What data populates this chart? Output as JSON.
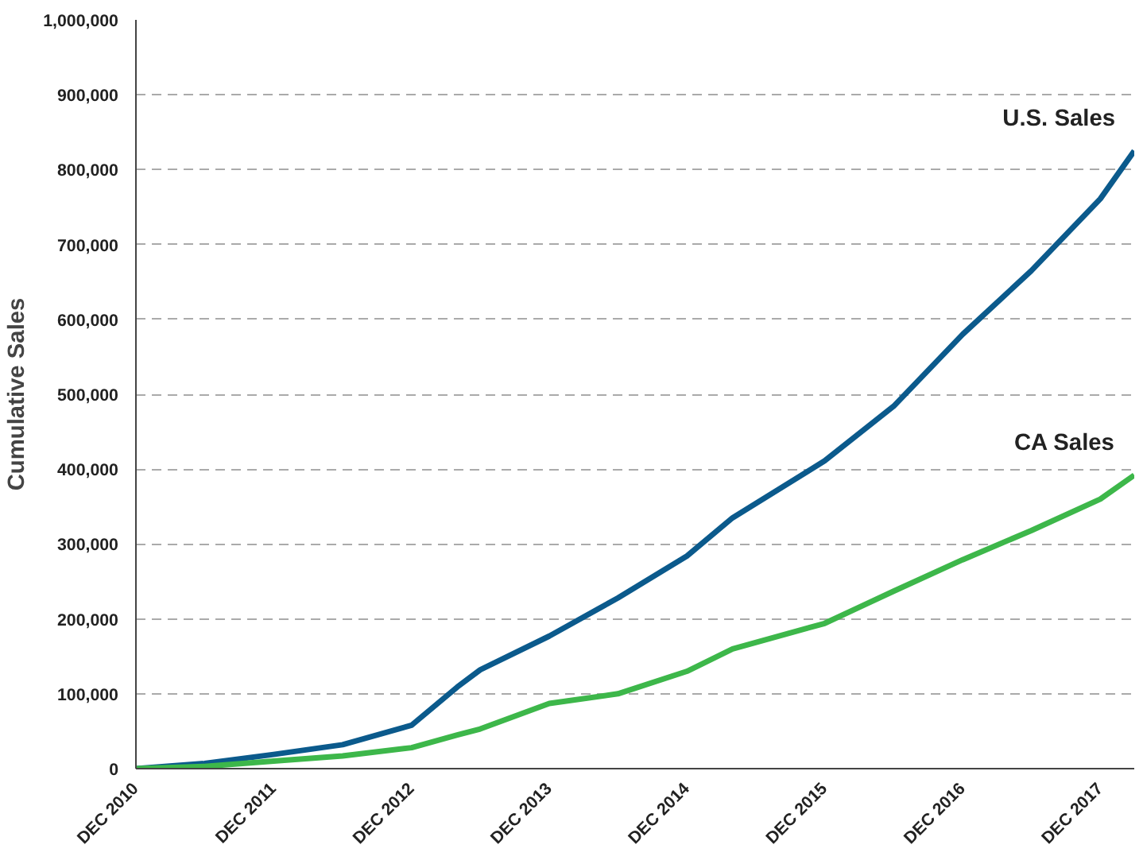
{
  "chart_data": {
    "type": "line",
    "ylabel": "Cumulative Sales",
    "x": [
      "2010-12",
      "2011-06",
      "2011-12",
      "2012-06",
      "2012-12",
      "2013-04",
      "2013-06",
      "2013-12",
      "2014-06",
      "2014-12",
      "2015-04",
      "2015-12",
      "2016-06",
      "2016-12",
      "2017-06",
      "2017-12",
      "2018-03"
    ],
    "series": [
      {
        "name": "U.S. Sales",
        "color": "#0b5a8c",
        "values": [
          0,
          7000,
          19000,
          32000,
          58000,
          109000,
          132000,
          177000,
          228000,
          284000,
          335000,
          411000,
          484000,
          580000,
          665000,
          761000,
          825000
        ]
      },
      {
        "name": "CA Sales",
        "color": "#3db74a",
        "values": [
          0,
          3000,
          10000,
          17000,
          28000,
          45000,
          53000,
          87000,
          100000,
          130000,
          160000,
          194000,
          237000,
          279000,
          318000,
          360000,
          392000
        ]
      }
    ],
    "xlim": [
      "2010-12",
      "2018-03"
    ],
    "xticks": [
      {
        "value": "2010-12",
        "label": "DEC 2010"
      },
      {
        "value": "2011-12",
        "label": "DEC 2011"
      },
      {
        "value": "2012-12",
        "label": "DEC 2012"
      },
      {
        "value": "2013-12",
        "label": "DEC 2013"
      },
      {
        "value": "2014-12",
        "label": "DEC 2014"
      },
      {
        "value": "2015-12",
        "label": "DEC 2015"
      },
      {
        "value": "2016-12",
        "label": "DEC 2016"
      },
      {
        "value": "2017-12",
        "label": "DEC 2017"
      }
    ],
    "ylim": [
      0,
      1000000
    ],
    "yticks": [
      0,
      {
        "value": 100000,
        "label": "100,000"
      },
      {
        "value": 200000,
        "label": "200,000"
      },
      {
        "value": 300000,
        "label": "300,000"
      },
      {
        "value": 400000,
        "label": "400,000"
      },
      {
        "value": 500000,
        "label": "500,000"
      },
      {
        "value": 600000,
        "label": "600,000"
      },
      {
        "value": 700000,
        "label": "700,000"
      },
      {
        "value": 800000,
        "label": "800,000"
      },
      {
        "value": 900000,
        "label": "900,000"
      },
      {
        "value": 1000000,
        "label": "1,000,000"
      }
    ],
    "grid": "y",
    "marker": "none",
    "line_style": "solid"
  }
}
